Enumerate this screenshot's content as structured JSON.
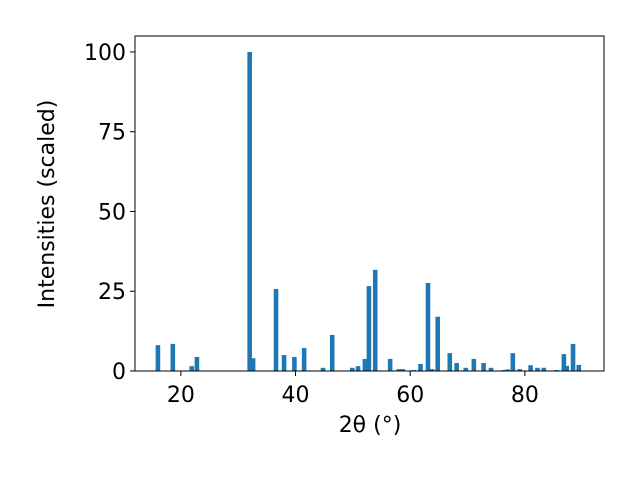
{
  "chart_data": {
    "type": "bar",
    "xlabel": "2θ (°)",
    "ylabel": "Intensities (scaled)",
    "x": [
      16.0,
      18.6,
      21.9,
      22.8,
      32.0,
      32.6,
      36.6,
      38.0,
      39.8,
      41.5,
      44.8,
      46.4,
      49.9,
      50.9,
      52.1,
      52.8,
      53.9,
      56.5,
      58.0,
      58.7,
      60.6,
      61.8,
      63.1,
      63.8,
      64.8,
      66.9,
      68.1,
      69.7,
      71.1,
      72.8,
      74.1,
      76.3,
      77.0,
      77.9,
      79.1,
      81.0,
      82.2,
      83.3,
      85.5,
      86.8,
      87.3,
      88.4,
      89.4
    ],
    "values": [
      8.1,
      8.5,
      1.5,
      4.4,
      100,
      4,
      25.7,
      5,
      4.4,
      7.2,
      1,
      11.3,
      1,
      1.5,
      3.8,
      26.6,
      31.7,
      3.8,
      0.6,
      0.6,
      0.3,
      2.2,
      27.6,
      0.6,
      17,
      5.6,
      2.5,
      1,
      3.8,
      2.5,
      1,
      0.3,
      0.5,
      5.6,
      0.6,
      1.8,
      1,
      1,
      0.3,
      5.3,
      1.6,
      8.5,
      1.9
    ],
    "color": "#1f77b4",
    "xlim": [
      12,
      93.8
    ],
    "ylim": [
      0,
      105
    ],
    "xticks": [
      20,
      40,
      60,
      80
    ],
    "yticks": [
      0,
      25,
      50,
      75,
      100
    ]
  }
}
